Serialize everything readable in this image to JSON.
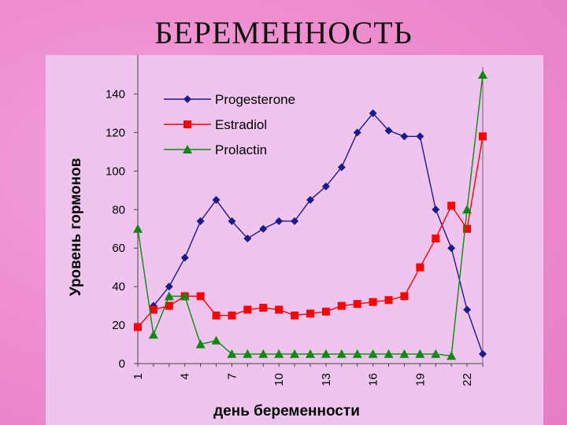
{
  "slide": {
    "title": "БЕРЕМЕННОСТЬ"
  },
  "chart_data": {
    "type": "line",
    "title": "",
    "xlabel": "день беременности",
    "ylabel": "Уровень гормонов",
    "x": [
      1,
      2,
      3,
      4,
      5,
      6,
      7,
      8,
      9,
      10,
      11,
      12,
      13,
      14,
      15,
      16,
      17,
      18,
      19,
      20,
      21,
      22,
      23
    ],
    "xticks": [
      1,
      4,
      7,
      10,
      13,
      16,
      19,
      22
    ],
    "ylim": [
      0,
      150
    ],
    "yticks": [
      0,
      20,
      40,
      60,
      80,
      100,
      120,
      140
    ],
    "legend_position": "top-left",
    "grid": false,
    "series": [
      {
        "name": "Progesterone",
        "color": "#1a1a8c",
        "marker": "diamond",
        "values": [
          null,
          30,
          40,
          55,
          74,
          85,
          74,
          65,
          70,
          74,
          74,
          85,
          92,
          102,
          120,
          130,
          121,
          118,
          118,
          80,
          60,
          28,
          5
        ]
      },
      {
        "name": "Estradiol",
        "color": "#ff0000",
        "marker": "square",
        "values": [
          19,
          28,
          30,
          35,
          35,
          25,
          25,
          28,
          29,
          28,
          25,
          26,
          27,
          30,
          31,
          32,
          33,
          35,
          50,
          65,
          82,
          70,
          118
        ]
      },
      {
        "name": "Prolactin",
        "color": "#0d8a0d",
        "marker": "triangle",
        "values": [
          70,
          15,
          35,
          35,
          10,
          12,
          5,
          5,
          5,
          5,
          5,
          5,
          5,
          5,
          5,
          5,
          5,
          5,
          5,
          5,
          4,
          80,
          150
        ]
      }
    ]
  }
}
